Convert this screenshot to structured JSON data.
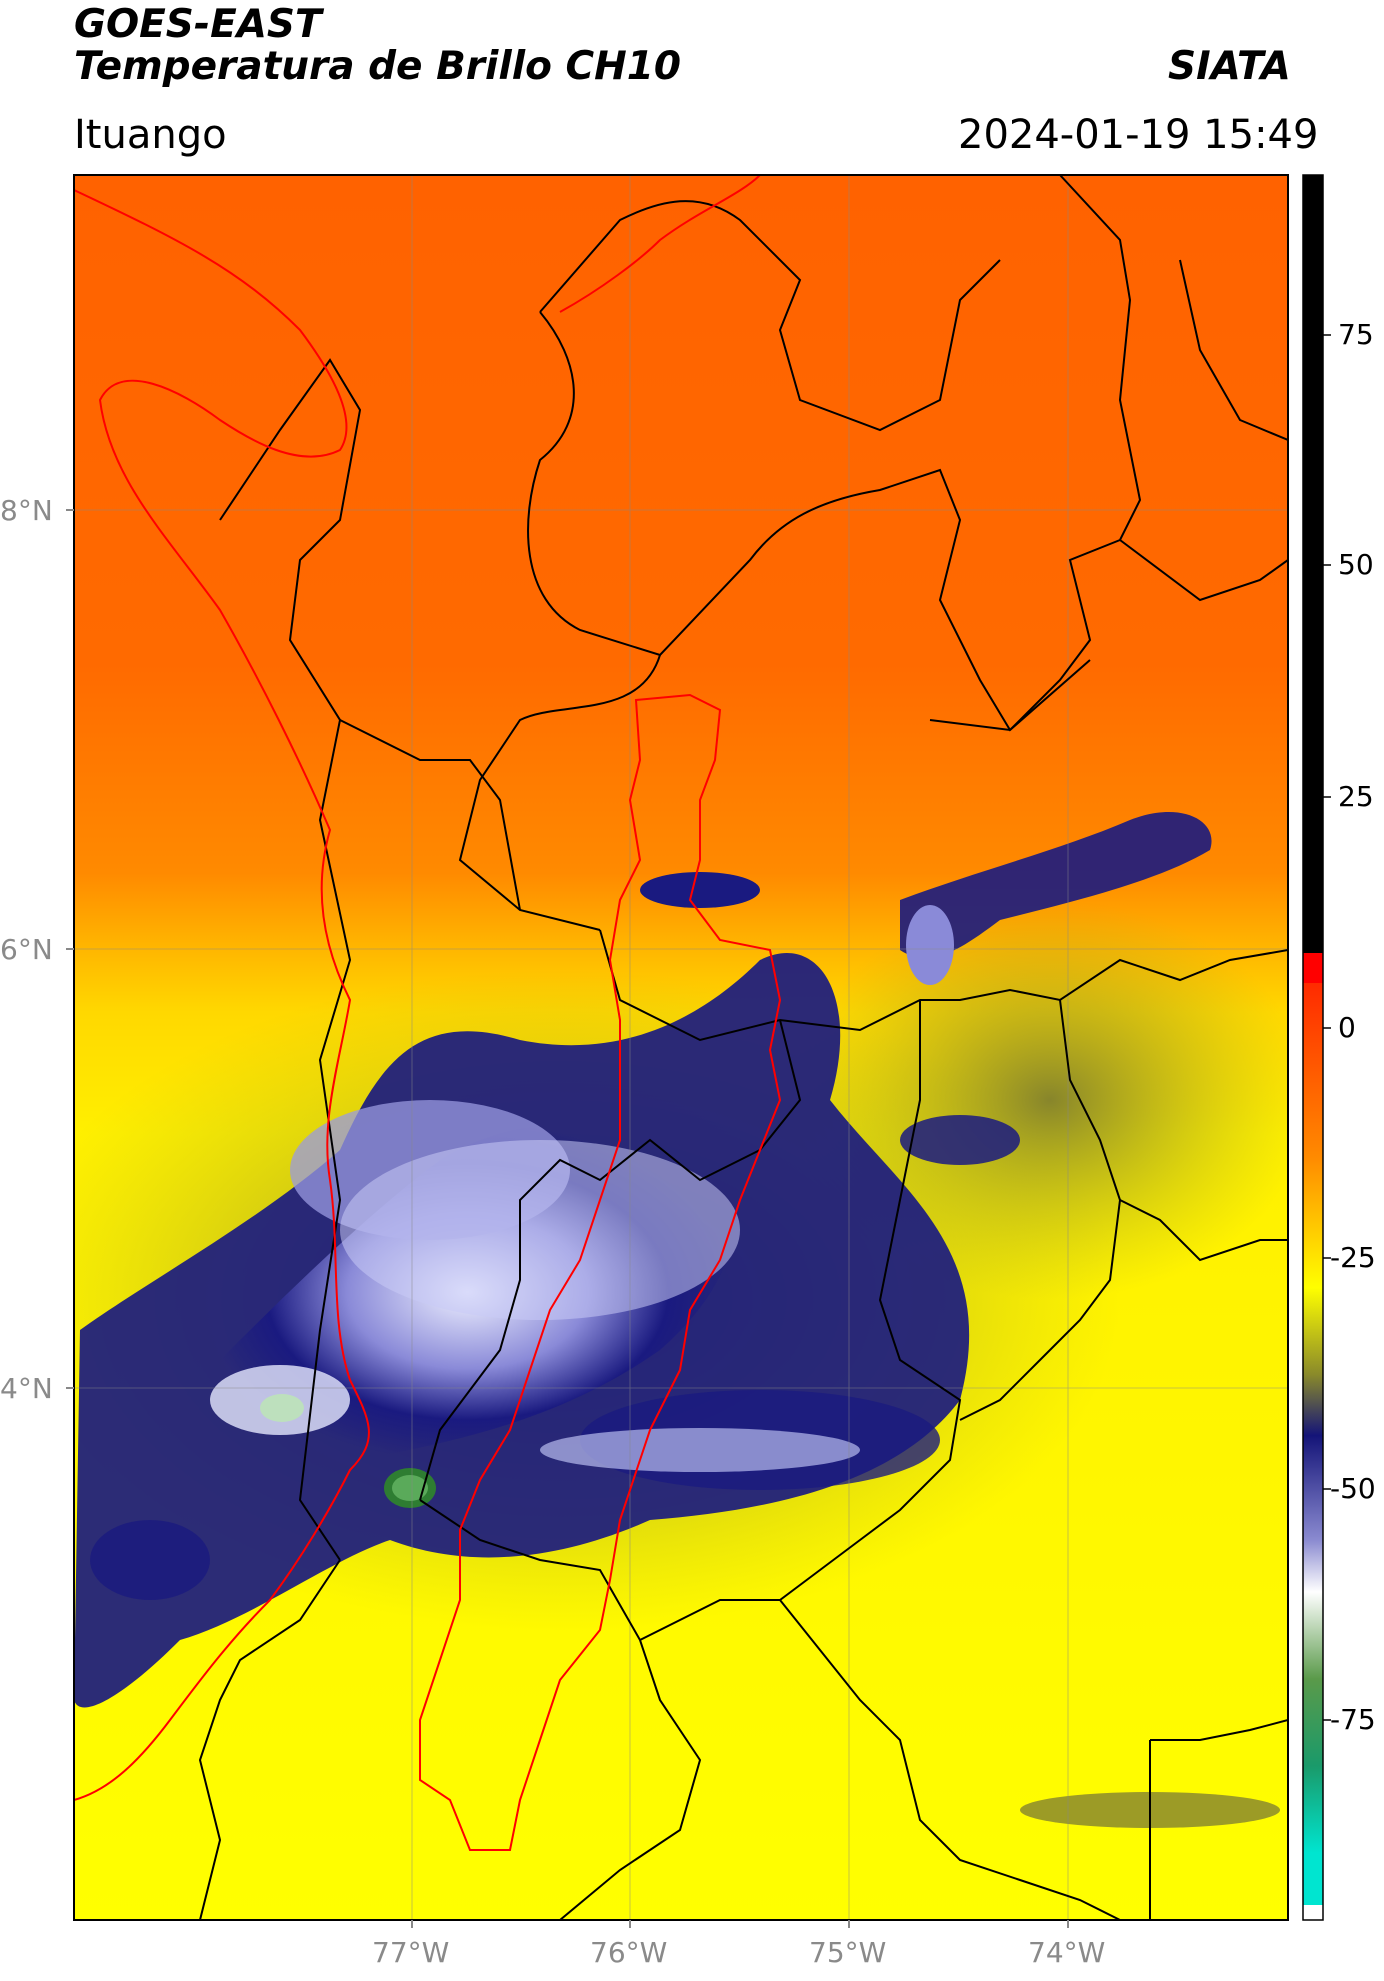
{
  "header": {
    "satellite": "GOES-EAST",
    "product": "Temperatura de Brillo CH10",
    "org": "SIATA",
    "location": "Ituango",
    "datetime": "2024-01-19 15:49"
  },
  "map": {
    "lat_ticks": [
      "8°N",
      "6°N",
      "4°N"
    ],
    "lon_ticks": [
      "77°W",
      "76°W",
      "75°W",
      "74°W"
    ],
    "boundary_color": "#000000",
    "region_outline_color": "#ff0000"
  },
  "colorbar": {
    "ticks": [
      "75",
      "50",
      "25",
      "0",
      "-25",
      "-50",
      "-75"
    ],
    "colors": {
      "black": "#000000",
      "red": "#ff0000",
      "orange": "#ff6600",
      "yellow": "#ffff00",
      "olive": "#8a8a2a",
      "navy": "#1a1a80",
      "white": "#ffffff",
      "green": "#2e7d32",
      "cyan": "#00e5d0"
    }
  }
}
